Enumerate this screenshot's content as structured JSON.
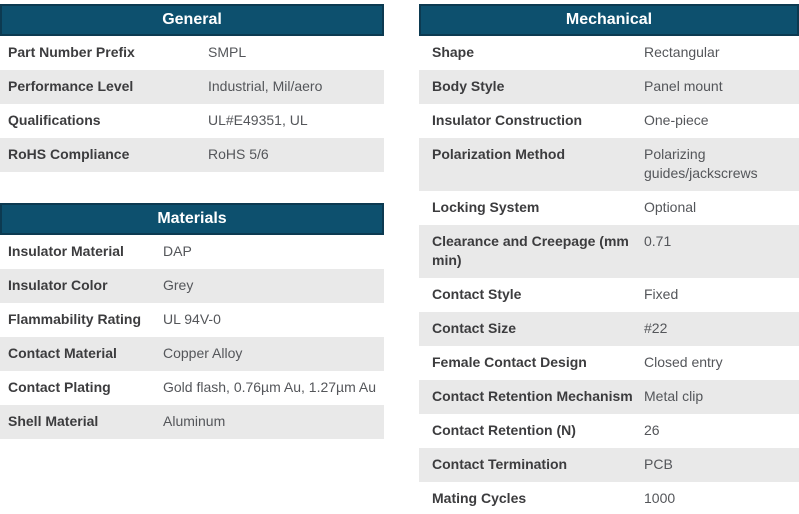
{
  "theme": {
    "header_bg": "#0d506e",
    "header_border": "#0c3a51",
    "header_text": "#ffffff",
    "row_alt_bg": "#e9e9e9",
    "label_color": "#3c3c3e",
    "value_color": "#54565a"
  },
  "tables": [
    {
      "id": "general",
      "title": "General",
      "rows": [
        {
          "label": "Part Number Prefix",
          "value": "SMPL"
        },
        {
          "label": "Performance Level",
          "value": "Industrial, Mil/aero"
        },
        {
          "label": "Qualifications",
          "value": "UL#E49351, UL"
        },
        {
          "label": "RoHS Compliance",
          "value": "RoHS 5/6"
        }
      ]
    },
    {
      "id": "materials",
      "title": "Materials",
      "rows": [
        {
          "label": "Insulator Material",
          "value": "DAP"
        },
        {
          "label": "Insulator Color",
          "value": "Grey"
        },
        {
          "label": "Flammability Rating",
          "value": "UL 94V-0"
        },
        {
          "label": "Contact Material",
          "value": "Copper Alloy"
        },
        {
          "label": "Contact Plating",
          "value": "Gold flash, 0.76µm Au, 1.27µm Au"
        },
        {
          "label": "Shell Material",
          "value": "Aluminum"
        }
      ]
    },
    {
      "id": "mechanical",
      "title": "Mechanical",
      "rows": [
        {
          "label": "Shape",
          "value": "Rectangular"
        },
        {
          "label": "Body Style",
          "value": "Panel mount"
        },
        {
          "label": "Insulator Construction",
          "value": "One-piece"
        },
        {
          "label": "Polarization Method",
          "value": "Polarizing guides/jackscrews"
        },
        {
          "label": "Locking System",
          "value": "Optional"
        },
        {
          "label": "Clearance and Creepage (mm min)",
          "value": "0.71"
        },
        {
          "label": "Contact Style",
          "value": "Fixed"
        },
        {
          "label": "Contact Size",
          "value": "#22"
        },
        {
          "label": "Female Contact Design",
          "value": "Closed entry"
        },
        {
          "label": "Contact Retention Mechanism",
          "value": "Metal clip"
        },
        {
          "label": "Contact Retention (N)",
          "value": "26"
        },
        {
          "label": "Contact Termination",
          "value": "PCB"
        },
        {
          "label": "Mating Cycles",
          "value": "1000"
        }
      ]
    }
  ]
}
